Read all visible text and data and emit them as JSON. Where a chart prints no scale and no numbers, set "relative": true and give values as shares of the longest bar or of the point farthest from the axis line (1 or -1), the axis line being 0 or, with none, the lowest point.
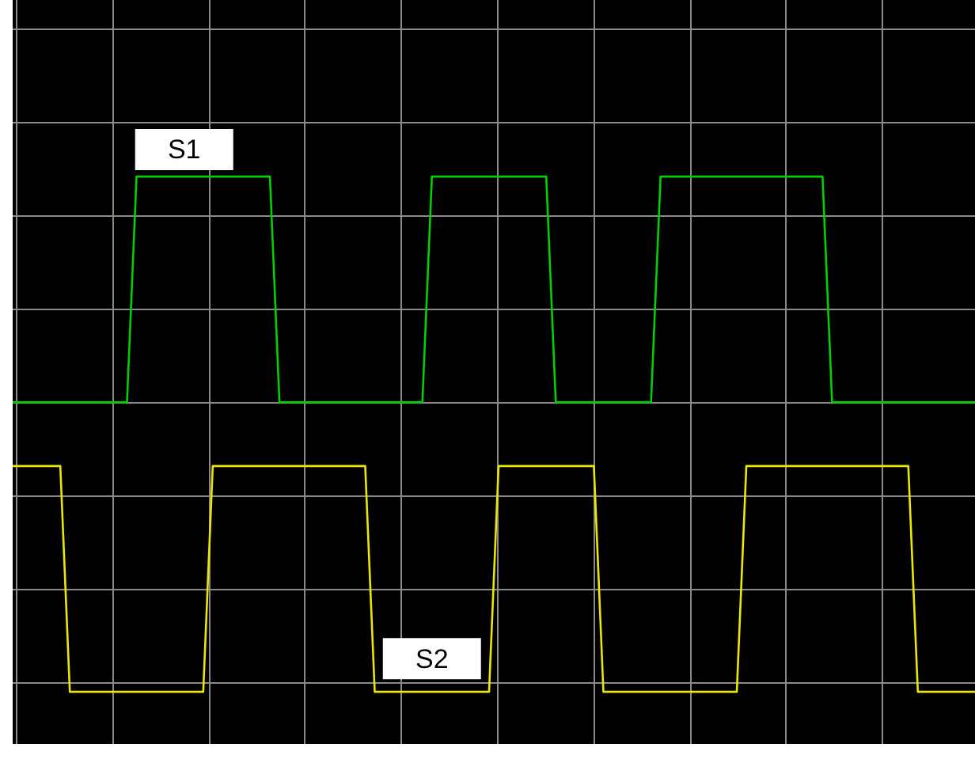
{
  "chart_data": {
    "type": "line",
    "relative": true,
    "grid": true,
    "legend": false,
    "marker": "none",
    "line_style": "solid",
    "categories": [
      null,
      null,
      null,
      null,
      null,
      null,
      null,
      null,
      null,
      null,
      null,
      null,
      null,
      null,
      null,
      null,
      null,
      null,
      null,
      null,
      null,
      null,
      null,
      null,
      null,
      null,
      null,
      null,
      null,
      null,
      null,
      null,
      null,
      null,
      null,
      null,
      null,
      null,
      null,
      null,
      null,
      null,
      null,
      null,
      null,
      null,
      null,
      null,
      null,
      null,
      null,
      null,
      null,
      null,
      null,
      null,
      null,
      null,
      null,
      null,
      null,
      null,
      null,
      null,
      null,
      null,
      null,
      null,
      null,
      null,
      null,
      null,
      null,
      null,
      null,
      null,
      null,
      null,
      null,
      null,
      null,
      null,
      null,
      null,
      null,
      null,
      null,
      null,
      null,
      null,
      null,
      null,
      null,
      null,
      null,
      null,
      null,
      null,
      null,
      null,
      null,
      null
    ],
    "series": [
      {
        "name": "S1",
        "color": "#00d000",
        "values": [
          0,
          0,
          0,
          0,
          0,
          0,
          0,
          0,
          0,
          0,
          0,
          0,
          0,
          0.78,
          0.78,
          0.78,
          0.78,
          0.78,
          0.78,
          0.78,
          0.78,
          0.78,
          0.78,
          0.78,
          0.78,
          0.78,
          0.78,
          0.78,
          0,
          0,
          0,
          0,
          0,
          0,
          0,
          0,
          0,
          0,
          0,
          0,
          0,
          0,
          0,
          0,
          0.78,
          0.78,
          0.78,
          0.78,
          0.78,
          0.78,
          0.78,
          0.78,
          0.78,
          0.78,
          0.78,
          0.78,
          0.78,
          0,
          0,
          0,
          0,
          0,
          0,
          0,
          0,
          0,
          0,
          0,
          0.78,
          0.78,
          0.78,
          0.78,
          0.78,
          0.78,
          0.78,
          0.78,
          0.78,
          0.78,
          0.78,
          0.78,
          0.78,
          0.78,
          0.78,
          0.78,
          0.78,
          0.78,
          0,
          0,
          0,
          0,
          0,
          0,
          0,
          0,
          0,
          0,
          0,
          0,
          0,
          0,
          0,
          0
        ]
      },
      {
        "name": "S2",
        "color": "#e8e800",
        "values": [
          -0.22,
          -0.22,
          -0.22,
          -0.22,
          -0.22,
          -0.22,
          -1,
          -1,
          -1,
          -1,
          -1,
          -1,
          -1,
          -1,
          -1,
          -1,
          -1,
          -1,
          -1,
          -1,
          -1,
          -0.22,
          -0.22,
          -0.22,
          -0.22,
          -0.22,
          -0.22,
          -0.22,
          -0.22,
          -0.22,
          -0.22,
          -0.22,
          -0.22,
          -0.22,
          -0.22,
          -0.22,
          -0.22,
          -0.22,
          -1,
          -1,
          -1,
          -1,
          -1,
          -1,
          -1,
          -1,
          -1,
          -1,
          -1,
          -1,
          -1,
          -0.22,
          -0.22,
          -0.22,
          -0.22,
          -0.22,
          -0.22,
          -0.22,
          -0.22,
          -0.22,
          -0.22,
          -0.22,
          -1,
          -1,
          -1,
          -1,
          -1,
          -1,
          -1,
          -1,
          -1,
          -1,
          -1,
          -1,
          -1,
          -1,
          -1,
          -0.22,
          -0.22,
          -0.22,
          -0.22,
          -0.22,
          -0.22,
          -0.22,
          -0.22,
          -0.22,
          -0.22,
          -0.22,
          -0.22,
          -0.22,
          -0.22,
          -0.22,
          -0.22,
          -0.22,
          -0.22,
          -1,
          -1,
          -1,
          -1,
          -1,
          -1,
          -1
        ]
      }
    ]
  }
}
